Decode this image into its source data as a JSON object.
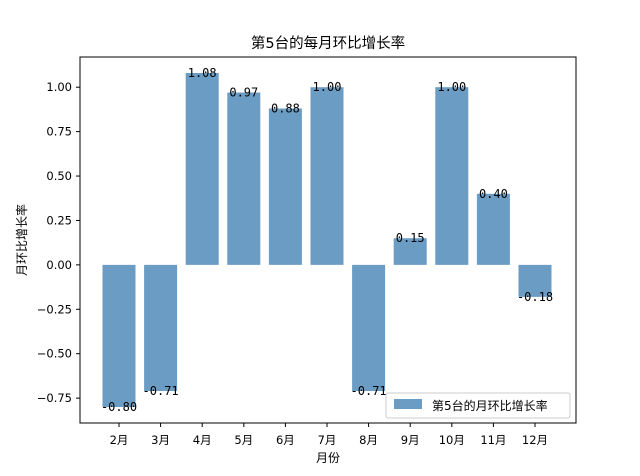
{
  "chart_data": {
    "type": "bar",
    "title": "第5台的每月环比增长率",
    "xlabel": "月份",
    "ylabel": "月环比增长率",
    "categories": [
      "2月",
      "3月",
      "4月",
      "5月",
      "6月",
      "7月",
      "8月",
      "9月",
      "10月",
      "11月",
      "12月"
    ],
    "series": [
      {
        "name": "第5台的月环比增长率",
        "values": [
          -0.8,
          -0.71,
          1.08,
          0.97,
          0.88,
          1.0,
          -0.71,
          0.15,
          1.0,
          0.4,
          -0.18
        ],
        "labels": [
          "-0.80",
          "-0.71",
          "1.08",
          "0.97",
          "0.88",
          "1.00",
          "-0.71",
          "0.15",
          "1.00",
          "0.40",
          "-0.18"
        ],
        "color": "#6b9dc4"
      }
    ],
    "yticks": [
      -0.75,
      -0.5,
      -0.25,
      0.0,
      0.25,
      0.5,
      0.75,
      1.0
    ],
    "ytick_labels": [
      "−0.75",
      "−0.50",
      "−0.25",
      "0.00",
      "0.25",
      "0.50",
      "0.75",
      "1.00"
    ],
    "ylim": [
      -0.89,
      1.17
    ],
    "grid": false,
    "legend_position": "lower-right"
  }
}
